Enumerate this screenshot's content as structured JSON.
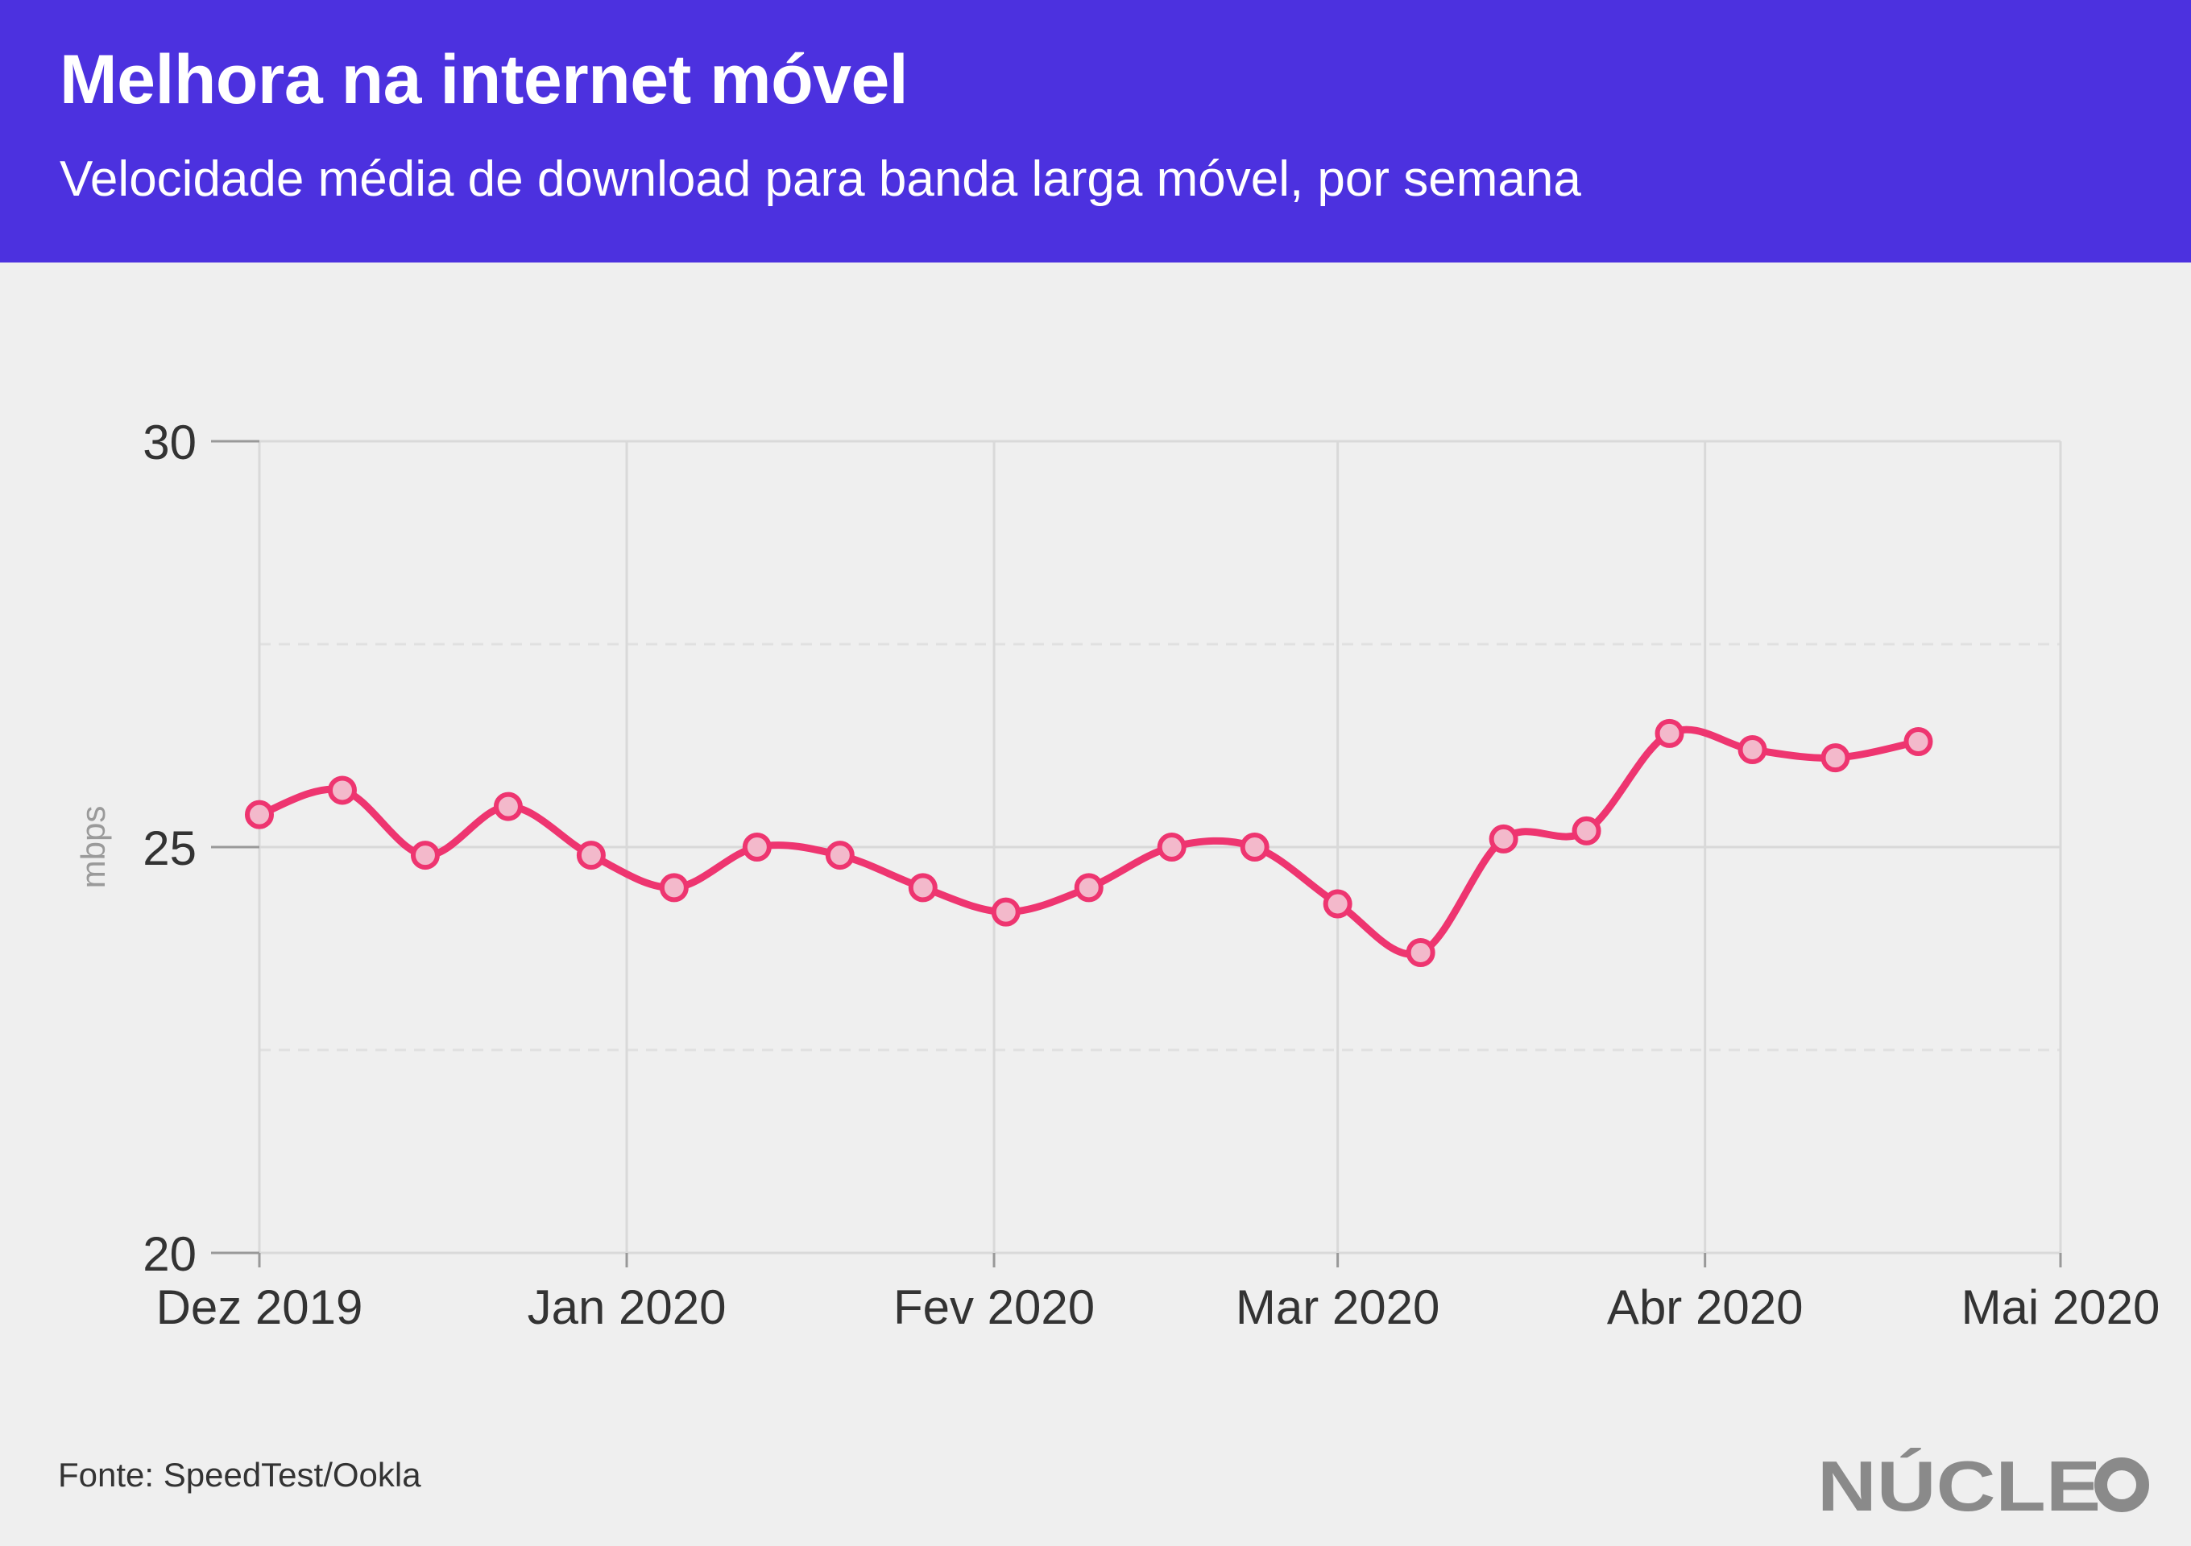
{
  "header": {
    "title": "Melhora na internet móvel",
    "subtitle": "Velocidade média de download para banda larga móvel, por semana"
  },
  "footer": {
    "source": "Fonte: SpeedTest/Ookla",
    "logo_text": "NÚCLEO"
  },
  "colors": {
    "header_bg": "#4c31df",
    "page_bg": "#efefef",
    "line": "#ee3570",
    "marker_fill": "#f3b9cb",
    "grid": "#d9d9d9",
    "logo": "#8a8a8a"
  },
  "chart_data": {
    "type": "line",
    "ylabel": "mbps",
    "ylim": [
      20,
      30
    ],
    "yticks": [
      20,
      25,
      30
    ],
    "ytick_labels": [
      "20",
      "25",
      "30"
    ],
    "minor_yticks": [
      22.5,
      27.5
    ],
    "xlim": [
      "2019-12-01",
      "2020-05-01"
    ],
    "xticks": [
      "2019-12-01",
      "2020-01-01",
      "2020-02-01",
      "2020-03-01",
      "2020-04-01",
      "2020-05-01"
    ],
    "xtick_labels": [
      "Dez 2019",
      "Jan 2020",
      "Fev 2020",
      "Mar 2020",
      "Abr 2020",
      "Mai 2020"
    ],
    "grid": true,
    "smooth": true,
    "series": [
      {
        "x": [
          "2019-12-01",
          "2019-12-08",
          "2019-12-15",
          "2019-12-22",
          "2019-12-29",
          "2020-01-05",
          "2020-01-12",
          "2020-01-19",
          "2020-01-26",
          "2020-02-02",
          "2020-02-09",
          "2020-02-16",
          "2020-02-23",
          "2020-03-01",
          "2020-03-08",
          "2020-03-15",
          "2020-03-22",
          "2020-03-29",
          "2020-04-05",
          "2020-04-12",
          "2020-04-19"
        ],
        "values": [
          25.4,
          25.7,
          24.9,
          25.5,
          24.9,
          24.5,
          25.0,
          24.9,
          24.5,
          24.2,
          24.5,
          25.0,
          25.0,
          24.3,
          23.7,
          25.1,
          25.2,
          26.4,
          26.2,
          26.1,
          26.3
        ]
      }
    ]
  }
}
